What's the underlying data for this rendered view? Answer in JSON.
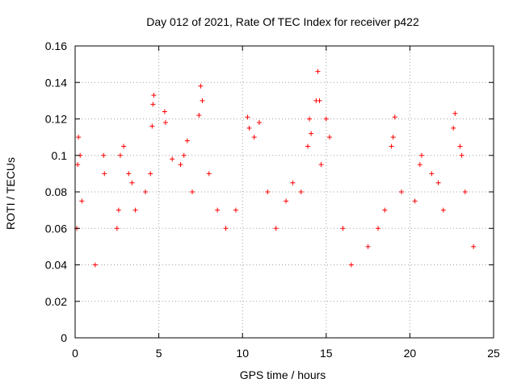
{
  "chart_data": {
    "type": "scatter",
    "title": "Day 012 of 2021, Rate Of TEC Index for receiver p422",
    "xlabel": "GPS time / hours",
    "ylabel": "ROTI / TECUs",
    "xlim": [
      0,
      25
    ],
    "ylim": [
      0,
      0.16
    ],
    "x_ticks": [
      0,
      5,
      10,
      15,
      20,
      25
    ],
    "x_tick_labels": [
      "0",
      "5",
      "10",
      "15",
      "20",
      "25"
    ],
    "y_ticks": [
      0,
      0.02,
      0.04,
      0.06,
      0.08,
      0.1,
      0.12,
      0.14,
      0.16
    ],
    "y_tick_labels": [
      "0",
      "0.02",
      "0.04",
      "0.06",
      "0.08",
      "0.1",
      "0.12",
      "0.14",
      "0.16"
    ],
    "grid": true,
    "marker": "plus",
    "color": "#ff0000",
    "x_data_range": [
      0,
      24
    ],
    "series": [
      {
        "values": [
          [
            0.1,
            0.06
          ],
          [
            0.15,
            0.095
          ],
          [
            0.2,
            0.11
          ],
          [
            0.3,
            0.1
          ],
          [
            0.4,
            0.075
          ],
          [
            1.2,
            0.04
          ],
          [
            1.7,
            0.1
          ],
          [
            1.75,
            0.09
          ],
          [
            2.5,
            0.06
          ],
          [
            2.6,
            0.07
          ],
          [
            2.7,
            0.1
          ],
          [
            2.9,
            0.105
          ],
          [
            3.2,
            0.09
          ],
          [
            3.4,
            0.085
          ],
          [
            3.6,
            0.07
          ],
          [
            4.2,
            0.08
          ],
          [
            4.5,
            0.09
          ],
          [
            4.6,
            0.116
          ],
          [
            4.65,
            0.128
          ],
          [
            4.7,
            0.133
          ],
          [
            5.35,
            0.124
          ],
          [
            5.4,
            0.118
          ],
          [
            5.8,
            0.098
          ],
          [
            6.3,
            0.095
          ],
          [
            6.5,
            0.1
          ],
          [
            6.7,
            0.108
          ],
          [
            7.0,
            0.08
          ],
          [
            7.4,
            0.122
          ],
          [
            7.5,
            0.138
          ],
          [
            7.6,
            0.13
          ],
          [
            8.0,
            0.09
          ],
          [
            8.5,
            0.07
          ],
          [
            9.0,
            0.06
          ],
          [
            9.6,
            0.07
          ],
          [
            10.3,
            0.121
          ],
          [
            10.4,
            0.115
          ],
          [
            10.7,
            0.11
          ],
          [
            11.0,
            0.118
          ],
          [
            11.5,
            0.08
          ],
          [
            12.0,
            0.06
          ],
          [
            12.6,
            0.075
          ],
          [
            13.0,
            0.085
          ],
          [
            13.5,
            0.08
          ],
          [
            13.9,
            0.105
          ],
          [
            14.0,
            0.12
          ],
          [
            14.1,
            0.112
          ],
          [
            14.4,
            0.13
          ],
          [
            14.5,
            0.146
          ],
          [
            14.6,
            0.13
          ],
          [
            14.7,
            0.095
          ],
          [
            15.0,
            0.12
          ],
          [
            15.2,
            0.11
          ],
          [
            16.0,
            0.06
          ],
          [
            16.5,
            0.04
          ],
          [
            17.5,
            0.05
          ],
          [
            18.1,
            0.06
          ],
          [
            18.5,
            0.07
          ],
          [
            18.9,
            0.105
          ],
          [
            19.0,
            0.11
          ],
          [
            19.1,
            0.121
          ],
          [
            19.5,
            0.08
          ],
          [
            20.3,
            0.075
          ],
          [
            20.6,
            0.095
          ],
          [
            20.7,
            0.1
          ],
          [
            21.3,
            0.09
          ],
          [
            21.7,
            0.085
          ],
          [
            22.0,
            0.07
          ],
          [
            22.6,
            0.115
          ],
          [
            22.7,
            0.123
          ],
          [
            23.0,
            0.105
          ],
          [
            23.1,
            0.1
          ],
          [
            23.3,
            0.08
          ],
          [
            23.8,
            0.05
          ]
        ]
      }
    ]
  }
}
